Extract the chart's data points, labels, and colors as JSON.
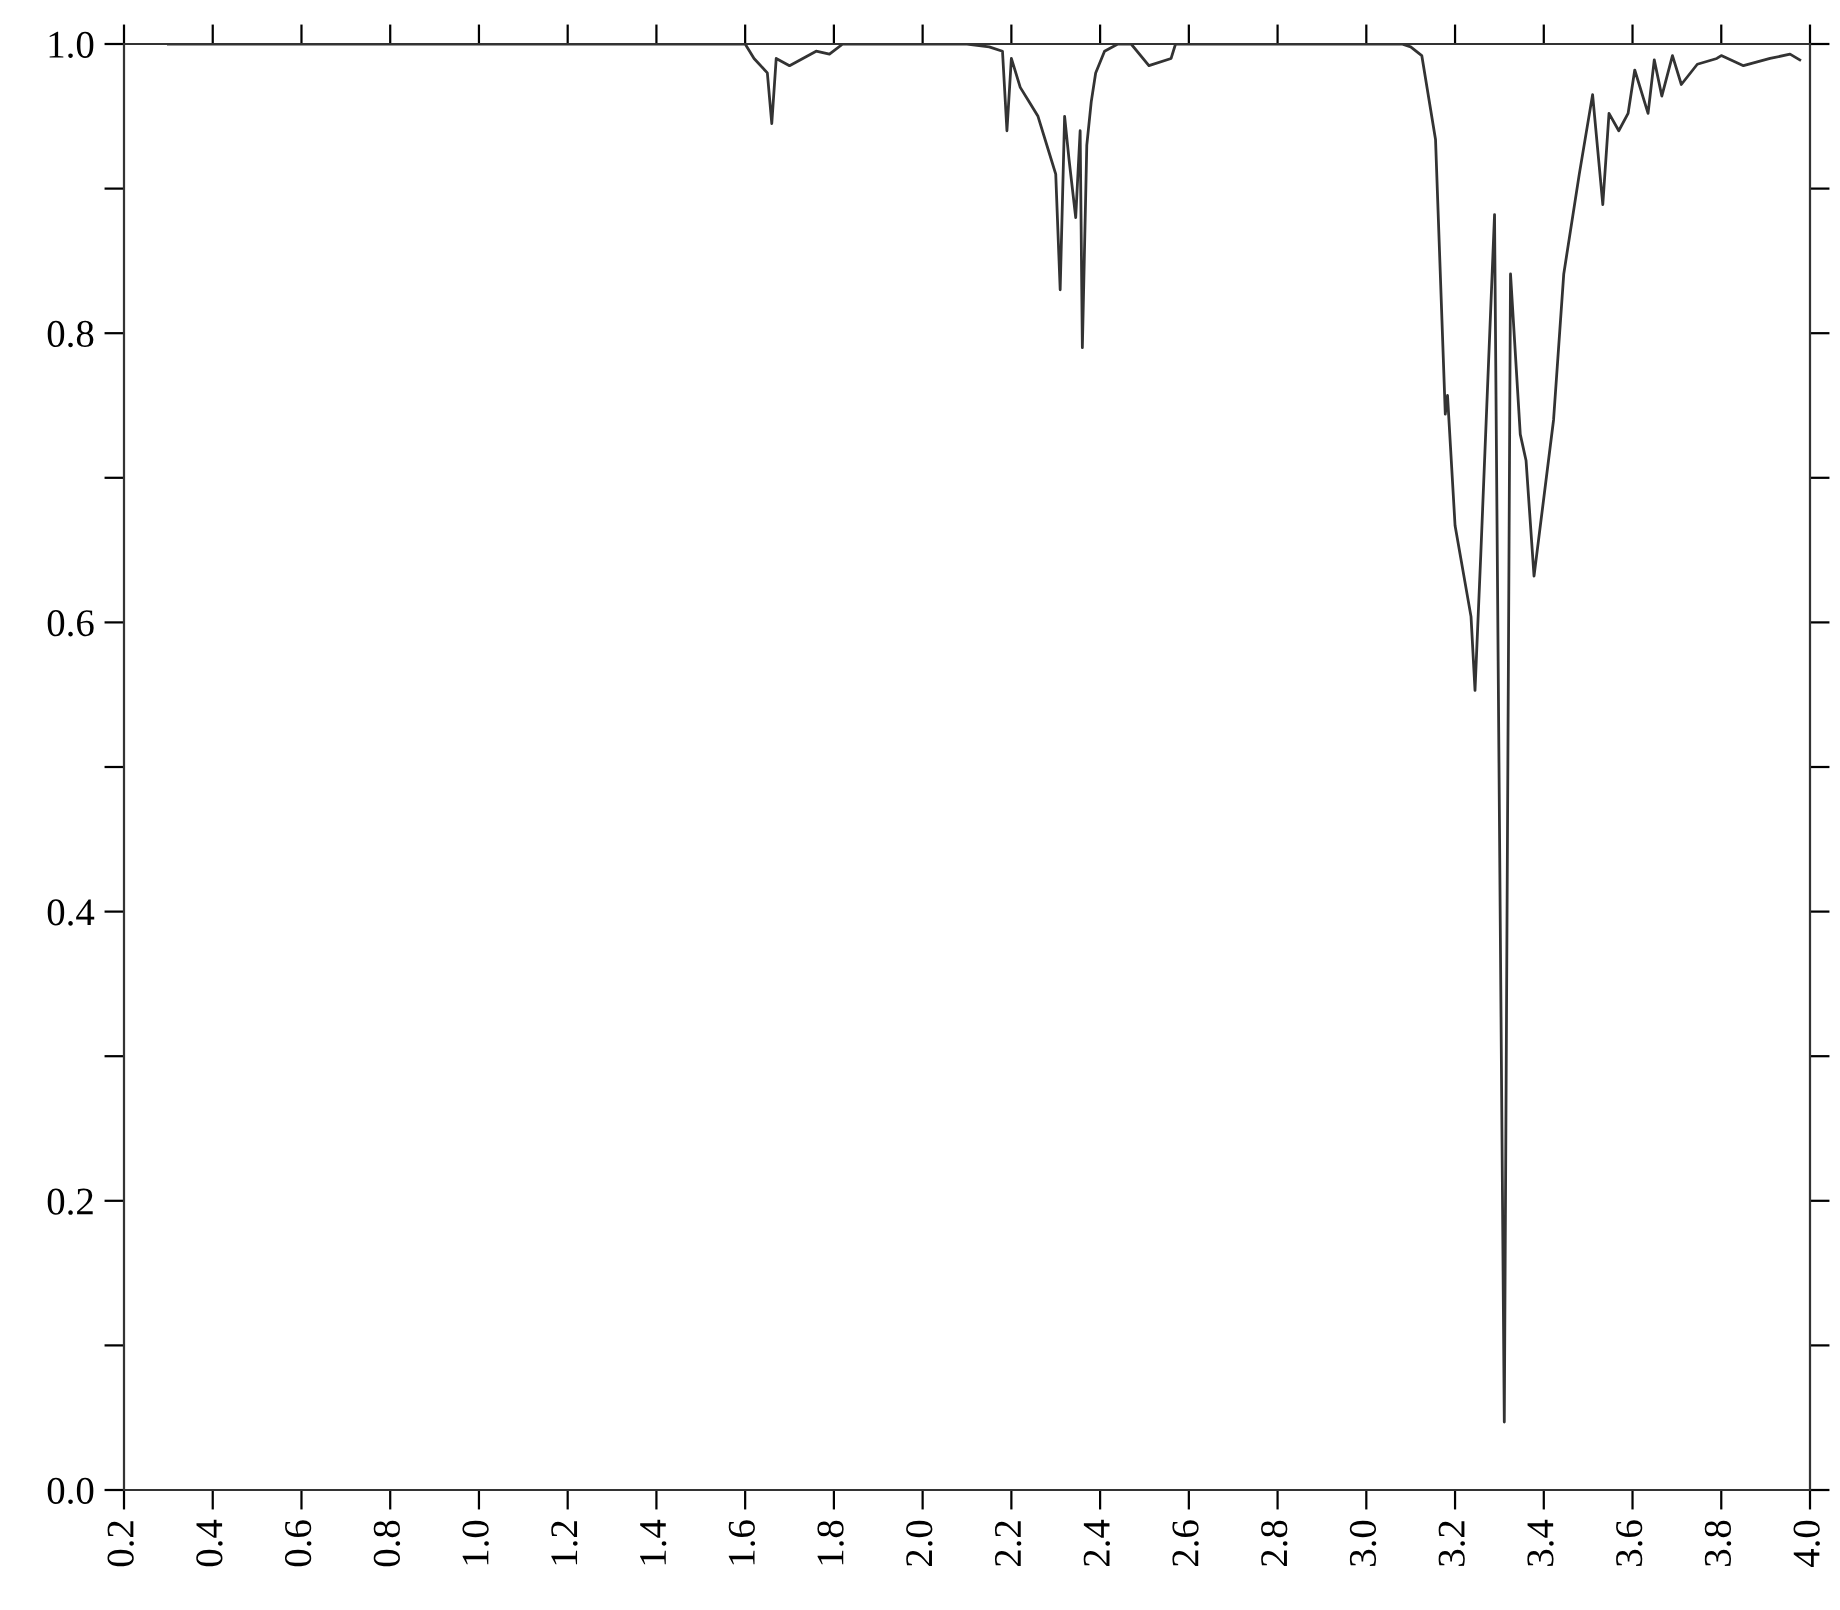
{
  "chart_data": {
    "type": "line",
    "series": [
      {
        "color": "#333333",
        "x": [
          0.3,
          1.6,
          1.62,
          1.65,
          1.66,
          1.67,
          1.7,
          1.73,
          1.76,
          1.79,
          1.82,
          2.1,
          2.15,
          2.18,
          2.19,
          2.2,
          2.22,
          2.24,
          2.26,
          2.28,
          2.3,
          2.31,
          2.32,
          2.33,
          2.345,
          2.355,
          2.36,
          2.37,
          2.38,
          2.39,
          2.41,
          2.44,
          2.47,
          2.51,
          2.56,
          2.57,
          2.62,
          2.66,
          3.08,
          3.1,
          3.125,
          3.156,
          3.178,
          3.183,
          3.2,
          3.236,
          3.245,
          3.258,
          3.289,
          3.311,
          3.325,
          3.347,
          3.36,
          3.378,
          3.422,
          3.445,
          3.48,
          3.51,
          3.533,
          3.547,
          3.569,
          3.59,
          3.605,
          3.635,
          3.649,
          3.666,
          3.69,
          3.71,
          3.746,
          3.79,
          3.8,
          3.85,
          3.91,
          3.955,
          3.977
        ],
        "values": [
          1.0,
          1.0,
          0.99,
          0.98,
          0.945,
          0.99,
          0.985,
          0.99,
          0.995,
          0.993,
          1.0,
          1.0,
          0.998,
          0.995,
          0.94,
          0.99,
          0.97,
          0.96,
          0.95,
          0.93,
          0.91,
          0.83,
          0.95,
          0.92,
          0.88,
          0.94,
          0.79,
          0.93,
          0.96,
          0.98,
          0.995,
          1.0,
          1.0,
          0.985,
          0.99,
          1.0,
          1.0,
          1.0,
          1.0,
          0.998,
          0.992,
          0.934,
          0.744,
          0.757,
          0.667,
          0.604,
          0.553,
          0.647,
          0.882,
          0.047,
          0.841,
          0.73,
          0.712,
          0.632,
          0.74,
          0.841,
          0.91,
          0.965,
          0.889,
          0.952,
          0.94,
          0.952,
          0.982,
          0.952,
          0.989,
          0.964,
          0.992,
          0.972,
          0.986,
          0.99,
          0.992,
          0.985,
          0.99,
          0.993,
          0.989
        ]
      }
    ],
    "xlim": [
      0.2,
      4.0
    ],
    "xticks": [
      {
        "value": 0.2,
        "label": "0.2"
      },
      {
        "value": 0.4,
        "label": "0.4"
      },
      {
        "value": 0.6,
        "label": "0.6"
      },
      {
        "value": 0.8,
        "label": "0.8"
      },
      {
        "value": 1.0,
        "label": "1.0"
      },
      {
        "value": 1.2,
        "label": "1.2"
      },
      {
        "value": 1.4,
        "label": "1.4"
      },
      {
        "value": 1.6,
        "label": "1.6"
      },
      {
        "value": 1.8,
        "label": "1.8"
      },
      {
        "value": 2.0,
        "label": "2.0"
      },
      {
        "value": 2.2,
        "label": "2.2"
      },
      {
        "value": 2.4,
        "label": "2.4"
      },
      {
        "value": 2.6,
        "label": "2.6"
      },
      {
        "value": 2.8,
        "label": "2.8"
      },
      {
        "value": 3.0,
        "label": "3.0"
      },
      {
        "value": 3.2,
        "label": "3.2"
      },
      {
        "value": 3.4,
        "label": "3.4"
      },
      {
        "value": 3.6,
        "label": "3.6"
      },
      {
        "value": 3.8,
        "label": "3.8"
      },
      {
        "value": 4.0,
        "label": "4.0"
      }
    ],
    "ylim": [
      0.0,
      1.0
    ],
    "yticks": [
      {
        "value": 0.0,
        "label": "0.0"
      },
      {
        "value": 0.1,
        "label": null
      },
      {
        "value": 0.2,
        "label": "0.2"
      },
      {
        "value": 0.3,
        "label": null
      },
      {
        "value": 0.4,
        "label": "0.4"
      },
      {
        "value": 0.5,
        "label": null
      },
      {
        "value": 0.6,
        "label": "0.6"
      },
      {
        "value": 0.7,
        "label": null
      },
      {
        "value": 0.8,
        "label": "0.8"
      },
      {
        "value": 0.9,
        "label": null
      },
      {
        "value": 1.0,
        "label": "1.0"
      }
    ],
    "grid": false,
    "legend": false
  }
}
